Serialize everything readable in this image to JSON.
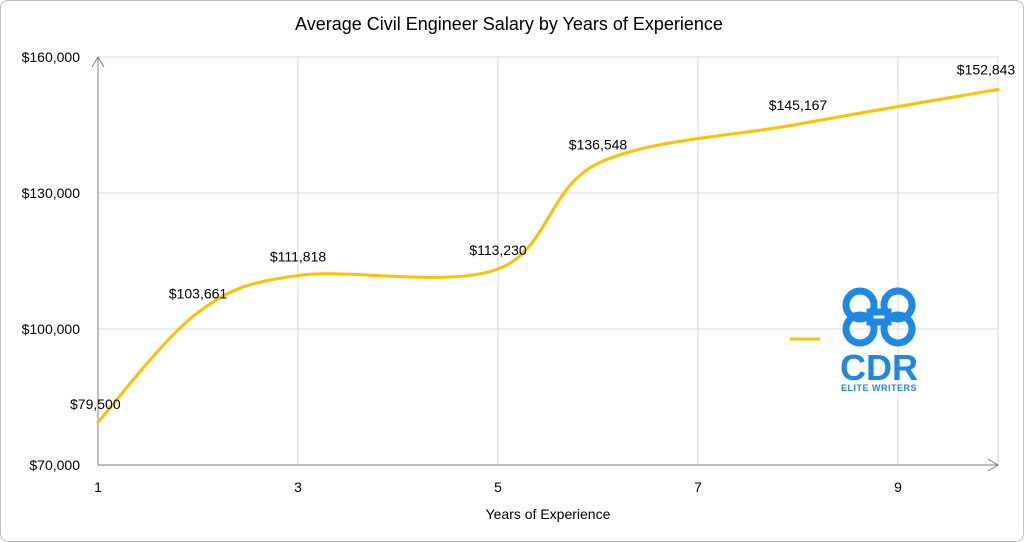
{
  "chart_data": {
    "type": "line",
    "title": "Average Civil Engineer Salary by Years of Experience",
    "xlabel": "Years of Experience",
    "ylabel": "",
    "xlim": [
      1,
      10
    ],
    "ylim": [
      70000,
      160000
    ],
    "x_ticks": [
      1,
      3,
      5,
      7,
      9
    ],
    "x_tick_labels": [
      "1",
      "3",
      "5",
      "7",
      "9"
    ],
    "y_ticks": [
      70000,
      100000,
      130000,
      160000
    ],
    "y_tick_labels": [
      "$70,000",
      "$100,000",
      "$130,000",
      "$160,000"
    ],
    "grid": true,
    "smooth": true,
    "series": [
      {
        "color": "#FFC000",
        "points": [
          {
            "x": 1,
            "y": 79500,
            "label": "$79,500"
          },
          {
            "x": 2,
            "y": 103661,
            "label": "$103,661"
          },
          {
            "x": 3,
            "y": 111818,
            "label": "$111,818"
          },
          {
            "x": 5,
            "y": 113230,
            "label": "$113,230"
          },
          {
            "x": 6,
            "y": 136548,
            "label": "$136,548"
          },
          {
            "x": 8,
            "y": 145167,
            "label": "$145,167"
          },
          {
            "x": 10,
            "y": 152843,
            "label": "$152,843"
          }
        ]
      }
    ]
  },
  "logo": {
    "text": "CDR",
    "subtext": "ELITE WRITERS",
    "color": "#1E88E5"
  },
  "legend": {
    "color": "#FFC000"
  }
}
